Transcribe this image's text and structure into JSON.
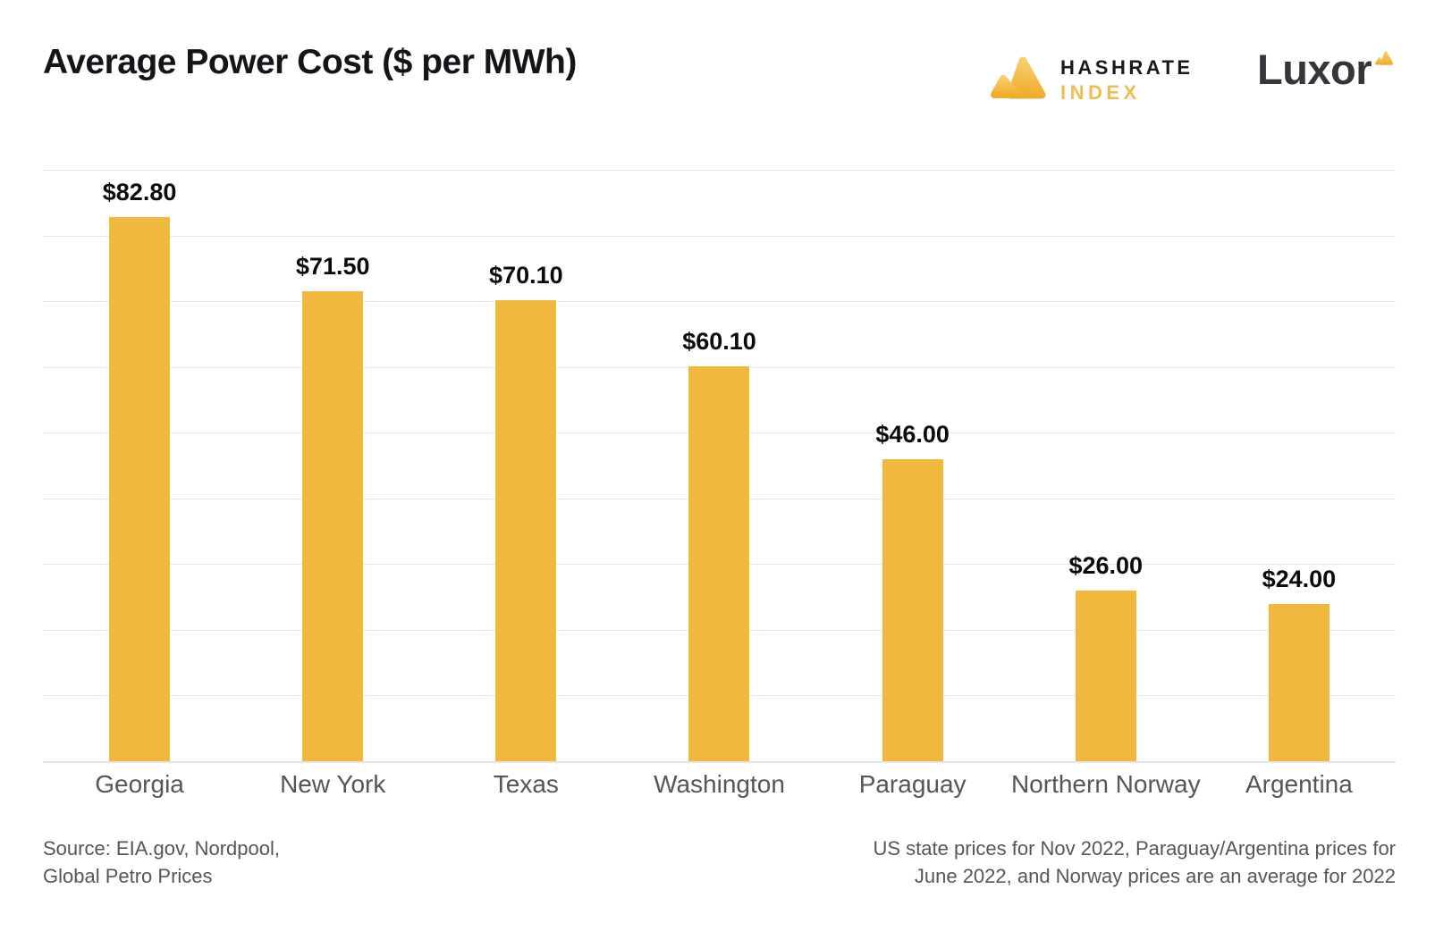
{
  "title": "Average Power Cost ($ per MWh)",
  "logos": {
    "hashrate_line1": "HASHRATE",
    "hashrate_line2": "INDEX",
    "luxor": "Luxor"
  },
  "footer": {
    "source_line1": "Source: EIA.gov, Nordpool,",
    "source_line2": "Global Petro Prices",
    "note_line1": "US state prices for Nov 2022, Paraguay/Argentina prices for",
    "note_line2": "June 2022, and Norway prices are an average for 2022"
  },
  "colors": {
    "bar_gold": "#F0B83D",
    "index_gold": "#EFBE4E",
    "hashrate_dark": "#17191d",
    "luxor_dark": "#35363b",
    "gridline": "#e9e9ec",
    "baseline": "#e3e3e6",
    "label_gray": "#55565a",
    "title_black": "#141519",
    "mark_gradient_top": "#F7CE6B",
    "mark_gradient_bottom": "#EFAC2D"
  },
  "chart_data": {
    "type": "bar",
    "title": "Average Power Cost ($ per MWh)",
    "categories": [
      "Georgia",
      "New York",
      "Texas",
      "Washington",
      "Paraguay",
      "Northern Norway",
      "Argentina"
    ],
    "values": [
      82.8,
      71.5,
      70.1,
      60.1,
      46.0,
      26.0,
      24.0
    ],
    "value_labels": [
      "$82.80",
      "$71.50",
      "$70.10",
      "$60.10",
      "$46.00",
      "$26.00",
      "$24.00"
    ],
    "xlabel": "",
    "ylabel": "",
    "ylim": [
      0,
      90
    ],
    "grid_step": 10,
    "grid": true,
    "legend": false,
    "bar_color": "#F0B83D"
  }
}
